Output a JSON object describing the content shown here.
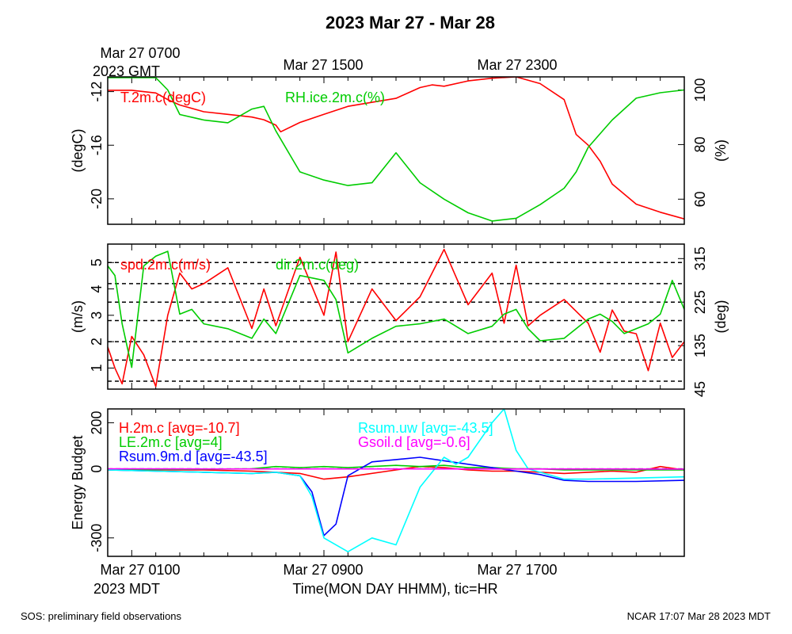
{
  "title": "2023 Mar 27 - Mar 28",
  "top_time_labels": [
    "Mar 27 0700",
    "Mar 27 1500",
    "Mar 27 2300"
  ],
  "top_time_zone": "2023 GMT",
  "bottom_time_labels": [
    "Mar 27 0100",
    "Mar 27 0900",
    "Mar 27 1700"
  ],
  "bottom_time_zone": "2023 MDT",
  "xlabel": "Time(MON DAY HHMM), tic=HR",
  "footer_left": "SOS: preliminary field observations",
  "footer_right": "NCAR 17:07 Mar 28 2023 MDT",
  "colors": {
    "red": "#ff0000",
    "green": "#00cc00",
    "blue": "#0000ff",
    "cyan": "#00ffff",
    "magenta": "#ff00ff",
    "black": "#000000"
  },
  "chart_data": [
    {
      "type": "line",
      "panel": "temperature-humidity",
      "ylabel_left": "(degC)",
      "ylabel_right": "(%)",
      "ylim_left": [
        -21.9,
        -10.9
      ],
      "yticks_left": [
        -12,
        -16,
        -20
      ],
      "ylim_right": [
        50.8,
        104.8
      ],
      "yticks_right": [
        60,
        80,
        100
      ],
      "x_hours": [
        0,
        24
      ],
      "x_ticks_hours": [
        1,
        9,
        17
      ],
      "series": [
        {
          "name": "T.2m.c(degC)",
          "color": "#ff0000",
          "axis": "left",
          "x": [
            0,
            1,
            2,
            2.5,
            3,
            4,
            5,
            6,
            6.5,
            7,
            7.2,
            8,
            9,
            10,
            11,
            12,
            13,
            13.5,
            14,
            15,
            16,
            17,
            18,
            19,
            19.5,
            20,
            20.5,
            21,
            22,
            23,
            24
          ],
          "y": [
            -11.9,
            -11.9,
            -12.1,
            -12.6,
            -13.0,
            -13.5,
            -13.7,
            -13.9,
            -14.1,
            -14.5,
            -15.0,
            -14.3,
            -13.7,
            -13.1,
            -12.8,
            -12.5,
            -11.7,
            -11.5,
            -11.6,
            -11.2,
            -11.0,
            -10.9,
            -11.4,
            -12.6,
            -15.2,
            -16.0,
            -17.2,
            -18.9,
            -20.4,
            -21.0,
            -21.5
          ]
        },
        {
          "name": "RH.ice.2m.c(%)",
          "color": "#00cc00",
          "axis": "right",
          "x": [
            0,
            1,
            2,
            2.5,
            3,
            4,
            5,
            6,
            6.5,
            7,
            8,
            9,
            10,
            11,
            12,
            13,
            14,
            15,
            16,
            17,
            18,
            19,
            19.5,
            20,
            20.5,
            21,
            22,
            23,
            24
          ],
          "y": [
            104.5,
            104.5,
            104.5,
            100,
            91,
            89,
            88,
            93,
            94,
            85,
            70,
            67,
            65,
            66,
            77,
            66,
            60,
            55,
            52,
            53,
            58,
            64,
            70,
            79,
            84,
            89,
            97,
            99,
            100
          ]
        }
      ]
    },
    {
      "type": "line",
      "panel": "wind",
      "ylabel_left": "(m/s)",
      "ylabel_right": "(deg)",
      "ylim_left": [
        0.2,
        5.7
      ],
      "yticks_left": [
        1,
        2,
        3,
        4,
        5
      ],
      "ylim_right": [
        45,
        345
      ],
      "yticks_right": [
        45,
        135,
        225,
        315
      ],
      "dashed_gridlines_left": [
        0.5,
        1.3,
        2.0,
        2.8,
        3.5,
        4.2,
        5.0
      ],
      "x_hours": [
        0,
        24
      ],
      "series": [
        {
          "name": "spd.2m.c(m/s)",
          "color": "#ff0000",
          "axis": "left",
          "x": [
            0,
            0.3,
            0.6,
            1,
            1.5,
            2,
            2.5,
            3,
            3.5,
            4,
            5,
            6,
            6.5,
            7,
            8,
            9,
            9.5,
            10,
            11,
            12,
            13,
            14,
            15,
            16,
            16.5,
            17,
            17.5,
            18,
            19,
            20,
            20.5,
            21,
            21.5,
            22,
            22.5,
            23,
            23.5,
            24
          ],
          "y": [
            1.8,
            1.0,
            0.4,
            2.2,
            1.5,
            0.3,
            3.0,
            4.6,
            4.0,
            4.2,
            4.8,
            2.5,
            4.0,
            2.6,
            5.2,
            3.0,
            5.4,
            2.0,
            4.0,
            2.8,
            3.7,
            5.5,
            3.4,
            4.6,
            2.7,
            4.9,
            2.6,
            3.0,
            3.6,
            2.7,
            1.6,
            3.2,
            2.4,
            2.3,
            0.9,
            2.7,
            1.4,
            2.0
          ]
        },
        {
          "name": "dir.2m.c(deg)",
          "color": "#00cc00",
          "axis": "right",
          "x": [
            0,
            0.3,
            0.6,
            1,
            1.5,
            2,
            2.5,
            3,
            3.5,
            4,
            5,
            6,
            6.5,
            7,
            8,
            9,
            9.5,
            10,
            11,
            12,
            13,
            14,
            15,
            16,
            16.5,
            17,
            17.5,
            18,
            19,
            20,
            20.5,
            21,
            21.5,
            22,
            22.5,
            23,
            23.5,
            24
          ],
          "y": [
            300,
            280,
            180,
            90,
            300,
            320,
            330,
            200,
            210,
            180,
            170,
            150,
            190,
            160,
            280,
            270,
            230,
            120,
            150,
            175,
            180,
            190,
            160,
            175,
            200,
            210,
            170,
            145,
            150,
            190,
            200,
            185,
            160,
            170,
            180,
            200,
            270,
            210
          ]
        }
      ]
    },
    {
      "type": "line",
      "panel": "energy-budget",
      "ylabel_left": "Energy Budget",
      "ylim": [
        -380,
        260
      ],
      "yticks": [
        200,
        0,
        -300
      ],
      "x_hours": [
        0,
        24
      ],
      "series": [
        {
          "name": "H.2m.c",
          "legend": "H.2m.c [avg=-10.7]",
          "color": "#ff0000",
          "x": [
            0,
            2,
            4,
            6,
            8,
            9,
            10,
            12,
            13,
            14,
            15,
            16,
            17,
            18,
            19,
            20,
            21,
            22,
            23,
            24
          ],
          "y": [
            -5,
            -5,
            -5,
            -10,
            -20,
            -45,
            -35,
            -5,
            10,
            5,
            -5,
            -10,
            -10,
            -15,
            -20,
            -15,
            -10,
            -15,
            10,
            -5
          ]
        },
        {
          "name": "LE.2m.c",
          "legend": "LE.2m.c [avg=4]",
          "color": "#00cc00",
          "x": [
            0,
            2,
            4,
            6,
            7,
            8,
            9,
            10,
            12,
            13,
            14,
            15,
            16,
            17,
            18,
            19,
            20,
            22,
            24
          ],
          "y": [
            -3,
            -3,
            -2,
            0,
            10,
            5,
            10,
            5,
            15,
            10,
            15,
            5,
            5,
            0,
            0,
            -5,
            -5,
            -5,
            -5
          ]
        },
        {
          "name": "Rsum.9m.d",
          "legend": "Rsum.9m.d [avg=-43.5]",
          "color": "#0000ff",
          "x": [
            0,
            2,
            4,
            6,
            7,
            8,
            8.5,
            9,
            9.5,
            10,
            11,
            12,
            13,
            14,
            15,
            16,
            17,
            18,
            19,
            20,
            22,
            24
          ],
          "y": [
            -5,
            -10,
            -15,
            -20,
            -15,
            -30,
            -100,
            -290,
            -240,
            -30,
            30,
            40,
            50,
            35,
            20,
            5,
            -10,
            -25,
            -50,
            -55,
            -55,
            -50
          ]
        },
        {
          "name": "Rsum.uw",
          "legend": "Rsum.uw [avg=-43.5]",
          "color": "#00ffff",
          "x": [
            0,
            2,
            4,
            6,
            7,
            8,
            8.5,
            9,
            10,
            11,
            12,
            13,
            14,
            14.5,
            15,
            16,
            16.5,
            17,
            17.5,
            18,
            19,
            20,
            22,
            24
          ],
          "y": [
            -5,
            -10,
            -15,
            -20,
            -15,
            -30,
            -120,
            -300,
            -360,
            -300,
            -330,
            -80,
            50,
            20,
            50,
            200,
            260,
            80,
            0,
            -15,
            -45,
            -45,
            -40,
            -35
          ]
        },
        {
          "name": "Gsoil.d",
          "legend": "Gsoil.d [avg=-0.6]",
          "color": "#ff00ff",
          "x": [
            0,
            24
          ],
          "y": [
            0,
            -1
          ]
        }
      ]
    }
  ]
}
